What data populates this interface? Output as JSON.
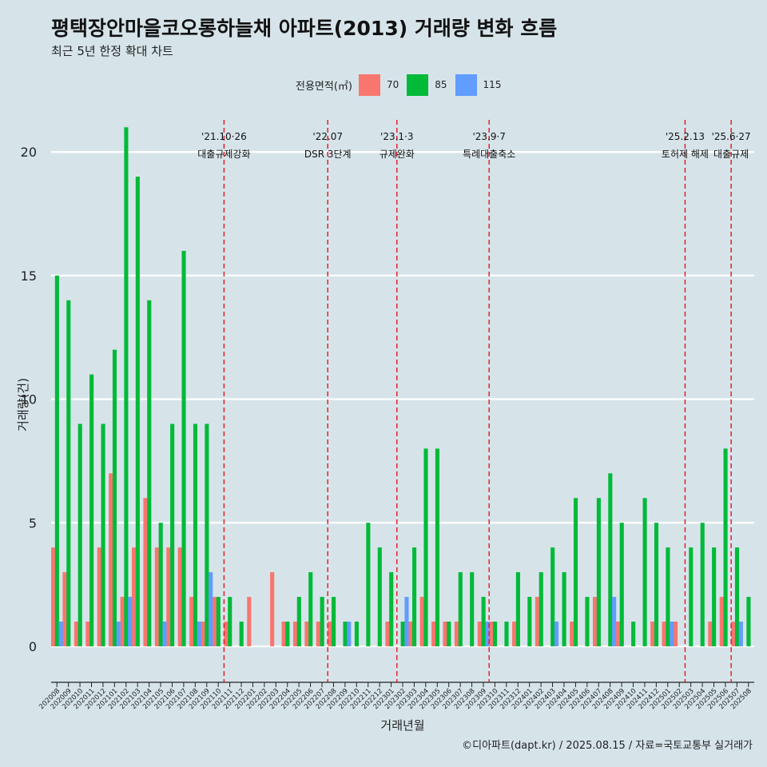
{
  "title": "평택장안마을코오롱하늘채 아파트(2013) 거래량 변화 흐름",
  "subtitle": "최근 5년 한정 확대 차트",
  "caption": "©디아파트(dapt.kr) / 2025.08.15 / 자료=국토교통부 실거래가",
  "legend": {
    "title": "전용면적(㎡)",
    "items": [
      {
        "label": "70",
        "color": "#f8766d"
      },
      {
        "label": "85",
        "color": "#00ba38"
      },
      {
        "label": "115",
        "color": "#619cff"
      }
    ]
  },
  "chart_data": {
    "type": "bar",
    "xlabel": "거래년월",
    "ylabel": "거래량(건)",
    "ylim": [
      -1.1,
      21.3
    ],
    "yticks": [
      0,
      5,
      10,
      15,
      20
    ],
    "grid": "horizontal",
    "legend_position": "top",
    "categories": [
      "202008",
      "202009",
      "202010",
      "202011",
      "202012",
      "202101",
      "202102",
      "202103",
      "202104",
      "202105",
      "202106",
      "202107",
      "202108",
      "202109",
      "202110",
      "202111",
      "202112",
      "202201",
      "202202",
      "202203",
      "202204",
      "202205",
      "202206",
      "202207",
      "202208",
      "202209",
      "202210",
      "202211",
      "202212",
      "202301",
      "202302",
      "202303",
      "202304",
      "202305",
      "202306",
      "202307",
      "202308",
      "202309",
      "202310",
      "202311",
      "202312",
      "202401",
      "202402",
      "202403",
      "202404",
      "202405",
      "202406",
      "202407",
      "202408",
      "202409",
      "202410",
      "202411",
      "202412",
      "202501",
      "202502",
      "202503",
      "202504",
      "202505",
      "202506",
      "202507",
      "202508"
    ],
    "series": [
      {
        "name": "70",
        "color": "#f8766d",
        "values": [
          4,
          3,
          1,
          1,
          4,
          7,
          2,
          4,
          6,
          4,
          4,
          4,
          2,
          1,
          2,
          1,
          0,
          2,
          0,
          3,
          1,
          1,
          1,
          1,
          1,
          0,
          0,
          0,
          0,
          1,
          0,
          1,
          2,
          1,
          1,
          1,
          0,
          1,
          1,
          0,
          1,
          0,
          2,
          0,
          0,
          1,
          0,
          2,
          0,
          1,
          0,
          0,
          1,
          1,
          1,
          0,
          0,
          1,
          2,
          1,
          0
        ]
      },
      {
        "name": "85",
        "color": "#00ba38",
        "values": [
          15,
          14,
          9,
          11,
          9,
          12,
          21,
          19,
          14,
          5,
          9,
          16,
          9,
          9,
          2,
          2,
          1,
          0,
          0,
          0,
          1,
          2,
          3,
          2,
          2,
          1,
          1,
          5,
          4,
          3,
          1,
          4,
          8,
          8,
          1,
          3,
          3,
          2,
          1,
          1,
          3,
          2,
          3,
          4,
          3,
          6,
          2,
          6,
          7,
          5,
          1,
          6,
          5,
          4,
          0,
          4,
          5,
          4,
          8,
          4,
          2
        ]
      },
      {
        "name": "115",
        "color": "#619cff",
        "values": [
          1,
          0,
          0,
          0,
          0,
          1,
          2,
          0,
          0,
          1,
          0,
          0,
          1,
          3,
          0,
          0,
          0,
          0,
          0,
          0,
          0,
          0,
          0,
          0,
          0,
          1,
          0,
          0,
          0,
          0,
          2,
          0,
          0,
          0,
          0,
          0,
          0,
          1,
          0,
          0,
          0,
          0,
          0,
          1,
          0,
          0,
          0,
          0,
          2,
          0,
          0,
          0,
          0,
          1,
          0,
          0,
          0,
          0,
          0,
          1,
          0
        ]
      }
    ],
    "events": [
      {
        "after": "202110",
        "offset": 0.5,
        "date": "'21.10·26",
        "label": "대출규제강화"
      },
      {
        "after": "202207",
        "offset": 0.5,
        "date": "'22.07",
        "label": "DSR 3단계"
      },
      {
        "after": "202301",
        "offset": 0.5,
        "date": "'23.1·3",
        "label": "규제완화"
      },
      {
        "after": "202309",
        "offset": 0.5,
        "date": "'23.9·7",
        "label": "특례대출축소"
      },
      {
        "after": "202502",
        "offset": 0.5,
        "date": "'25.2.13",
        "label": "토허제 해제"
      },
      {
        "after": "202506",
        "offset": 0.5,
        "date": "'25.6·27",
        "label": "대출규제"
      }
    ]
  }
}
